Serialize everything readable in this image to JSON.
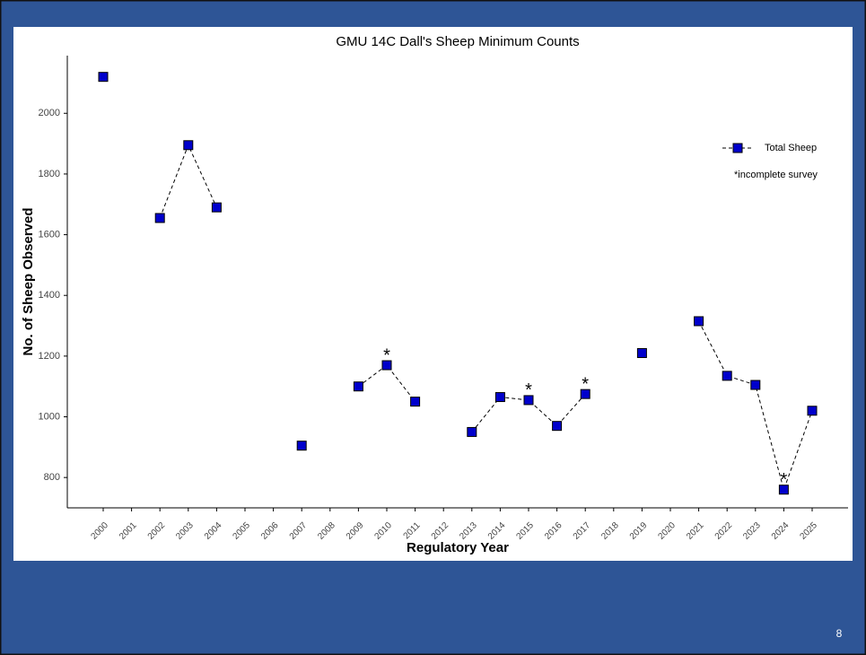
{
  "chart_data": {
    "type": "line",
    "title": "GMU 14C Dall's Sheep Minimum Counts",
    "x_label": "Regulatory Year",
    "y_label": "No. of Sheep Observed",
    "categories": [
      "2000",
      "2001",
      "2002",
      "2003",
      "2004",
      "2005",
      "2006",
      "2007",
      "2008",
      "2009",
      "2010",
      "2011",
      "2012",
      "2013",
      "2014",
      "2015",
      "2016",
      "2017",
      "2018",
      "2019",
      "2020",
      "2021",
      "2022",
      "2023",
      "2024",
      "2025"
    ],
    "series": [
      {
        "name": "Total Sheep",
        "color": "#0000cc",
        "values": [
          2120,
          null,
          1655,
          1895,
          1690,
          null,
          null,
          905,
          null,
          1100,
          1170,
          1050,
          null,
          950,
          1065,
          1055,
          970,
          1075,
          null,
          1210,
          null,
          1315,
          1135,
          1105,
          760,
          1020
        ]
      }
    ],
    "annotations": [
      {
        "category": "2010",
        "text": "*"
      },
      {
        "category": "2015",
        "text": "*"
      },
      {
        "category": "2017",
        "text": "*"
      },
      {
        "category": "2024",
        "text": "*"
      }
    ],
    "legend_note": "*incomplete survey",
    "ylim": [
      700,
      2190
    ],
    "yticks": [
      800,
      1000,
      1200,
      1400,
      1600,
      1800,
      2000
    ],
    "grid": false
  },
  "slide_number": "8"
}
